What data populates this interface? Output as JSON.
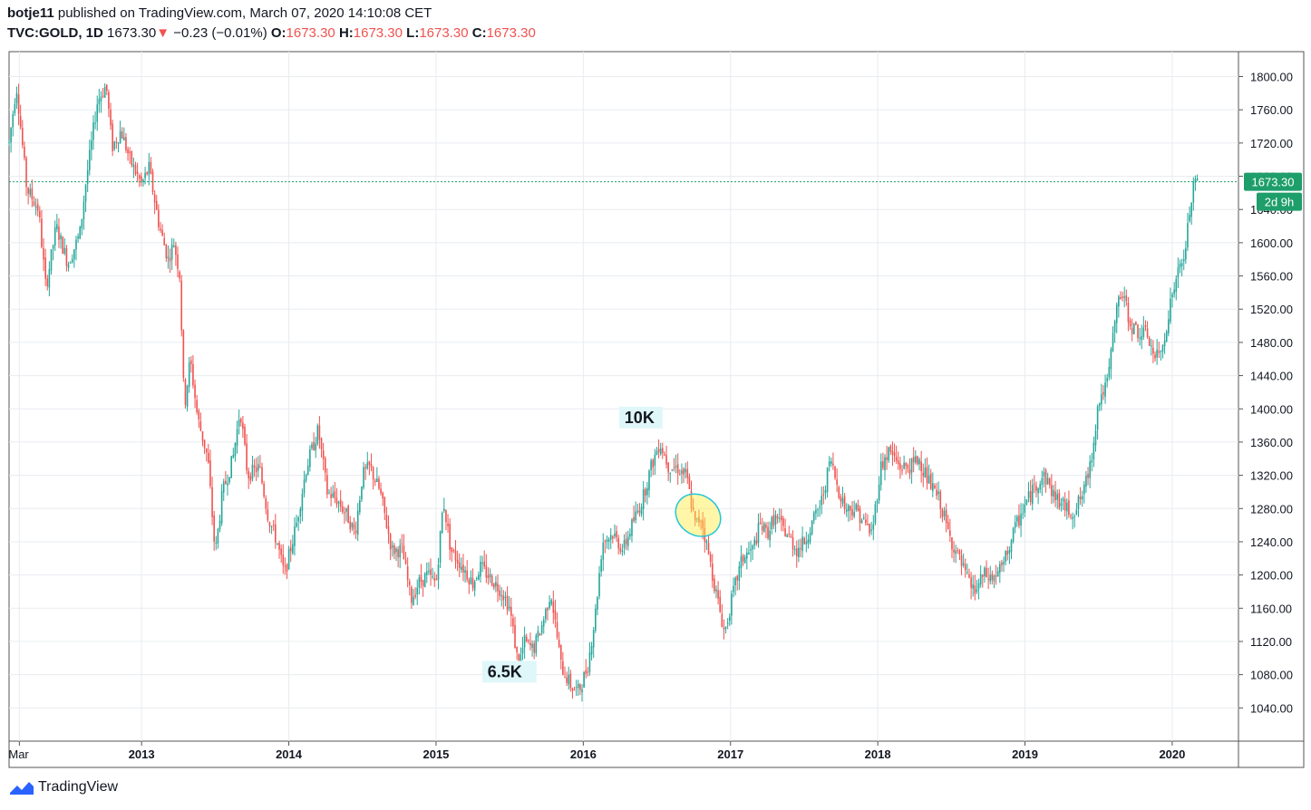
{
  "header": {
    "author": "botje11",
    "published": "published on TradingView.com, March 07, 2020 14:10:08 CET",
    "symbol": "TVC:GOLD, 1D",
    "last": "1673.30",
    "change": "−0.23 (−0.01%)",
    "o_label": "O:",
    "o_value": "1673.30",
    "h_label": "H:",
    "h_value": "1673.30",
    "l_label": "L:",
    "l_value": "1673.30",
    "c_label": "C:",
    "c_value": "1673.30"
  },
  "footer": {
    "brand": "TradingView"
  },
  "colors": {
    "up": "#26a69a",
    "down": "#ef5350",
    "price_tag": "#1e9e6a",
    "grid": "#e8ecf0",
    "axis": "#555555",
    "text": "#131722"
  },
  "chart_data": {
    "type": "candlestick",
    "symbol": "TVC:GOLD",
    "interval": "1D",
    "ylim": [
      1000,
      1830
    ],
    "y_ticks": [
      1040,
      1080,
      1120,
      1160,
      1200,
      1240,
      1280,
      1320,
      1360,
      1400,
      1440,
      1480,
      1520,
      1560,
      1600,
      1640,
      1680,
      1720,
      1760,
      1800
    ],
    "x_ticks": [
      {
        "label": "Mar",
        "t": 2012.17
      },
      {
        "label": "2013",
        "t": 2013.0
      },
      {
        "label": "2014",
        "t": 2014.0
      },
      {
        "label": "2015",
        "t": 2015.0
      },
      {
        "label": "2016",
        "t": 2016.0
      },
      {
        "label": "2017",
        "t": 2017.0
      },
      {
        "label": "2018",
        "t": 2018.0
      },
      {
        "label": "2019",
        "t": 2019.0
      },
      {
        "label": "2020",
        "t": 2020.0
      }
    ],
    "x_range": [
      2012.1,
      2020.45
    ],
    "current_price": 1673.3,
    "current_price_label": "1673.30",
    "countdown_label": "2d 9h",
    "price_path": [
      [
        2012.1,
        1720
      ],
      [
        2012.15,
        1790
      ],
      [
        2012.22,
        1665
      ],
      [
        2012.3,
        1640
      ],
      [
        2012.35,
        1545
      ],
      [
        2012.42,
        1620
      ],
      [
        2012.5,
        1575
      ],
      [
        2012.58,
        1610
      ],
      [
        2012.62,
        1670
      ],
      [
        2012.7,
        1770
      ],
      [
        2012.76,
        1790
      ],
      [
        2012.8,
        1715
      ],
      [
        2012.86,
        1735
      ],
      [
        2012.92,
        1700
      ],
      [
        2013.0,
        1670
      ],
      [
        2013.05,
        1690
      ],
      [
        2013.12,
        1620
      ],
      [
        2013.18,
        1580
      ],
      [
        2013.22,
        1600
      ],
      [
        2013.26,
        1560
      ],
      [
        2013.29,
        1400
      ],
      [
        2013.33,
        1460
      ],
      [
        2013.38,
        1390
      ],
      [
        2013.45,
        1340
      ],
      [
        2013.5,
        1225
      ],
      [
        2013.55,
        1300
      ],
      [
        2013.62,
        1340
      ],
      [
        2013.67,
        1400
      ],
      [
        2013.72,
        1320
      ],
      [
        2013.8,
        1330
      ],
      [
        2013.86,
        1270
      ],
      [
        2013.92,
        1240
      ],
      [
        2013.97,
        1200
      ],
      [
        2014.05,
        1260
      ],
      [
        2014.12,
        1330
      ],
      [
        2014.2,
        1375
      ],
      [
        2014.26,
        1300
      ],
      [
        2014.33,
        1290
      ],
      [
        2014.4,
        1270
      ],
      [
        2014.45,
        1250
      ],
      [
        2014.5,
        1320
      ],
      [
        2014.55,
        1330
      ],
      [
        2014.62,
        1300
      ],
      [
        2014.7,
        1230
      ],
      [
        2014.77,
        1230
      ],
      [
        2014.83,
        1170
      ],
      [
        2014.88,
        1190
      ],
      [
        2014.94,
        1200
      ],
      [
        2015.0,
        1190
      ],
      [
        2015.05,
        1290
      ],
      [
        2015.1,
        1230
      ],
      [
        2015.18,
        1210
      ],
      [
        2015.25,
        1190
      ],
      [
        2015.3,
        1210
      ],
      [
        2015.35,
        1200
      ],
      [
        2015.4,
        1190
      ],
      [
        2015.45,
        1180
      ],
      [
        2015.5,
        1160
      ],
      [
        2015.56,
        1090
      ],
      [
        2015.6,
        1120
      ],
      [
        2015.66,
        1110
      ],
      [
        2015.72,
        1140
      ],
      [
        2015.78,
        1180
      ],
      [
        2015.85,
        1090
      ],
      [
        2015.92,
        1065
      ],
      [
        2015.97,
        1060
      ],
      [
        2016.03,
        1090
      ],
      [
        2016.08,
        1150
      ],
      [
        2016.13,
        1240
      ],
      [
        2016.2,
        1250
      ],
      [
        2016.27,
        1230
      ],
      [
        2016.33,
        1260
      ],
      [
        2016.4,
        1290
      ],
      [
        2016.46,
        1330
      ],
      [
        2016.52,
        1360
      ],
      [
        2016.58,
        1330
      ],
      [
        2016.63,
        1330
      ],
      [
        2016.7,
        1320
      ],
      [
        2016.76,
        1260
      ],
      [
        2016.8,
        1270
      ],
      [
        2016.85,
        1225
      ],
      [
        2016.9,
        1180
      ],
      [
        2016.96,
        1130
      ],
      [
        2017.02,
        1180
      ],
      [
        2017.08,
        1220
      ],
      [
        2017.15,
        1230
      ],
      [
        2017.2,
        1260
      ],
      [
        2017.25,
        1250
      ],
      [
        2017.3,
        1270
      ],
      [
        2017.38,
        1250
      ],
      [
        2017.45,
        1230
      ],
      [
        2017.5,
        1240
      ],
      [
        2017.55,
        1260
      ],
      [
        2017.62,
        1290
      ],
      [
        2017.68,
        1340
      ],
      [
        2017.72,
        1310
      ],
      [
        2017.78,
        1280
      ],
      [
        2017.85,
        1280
      ],
      [
        2017.92,
        1260
      ],
      [
        2017.96,
        1250
      ],
      [
        2018.02,
        1330
      ],
      [
        2018.08,
        1350
      ],
      [
        2018.15,
        1330
      ],
      [
        2018.22,
        1330
      ],
      [
        2018.28,
        1340
      ],
      [
        2018.35,
        1310
      ],
      [
        2018.42,
        1290
      ],
      [
        2018.48,
        1250
      ],
      [
        2018.55,
        1220
      ],
      [
        2018.62,
        1190
      ],
      [
        2018.66,
        1180
      ],
      [
        2018.72,
        1200
      ],
      [
        2018.78,
        1195
      ],
      [
        2018.85,
        1210
      ],
      [
        2018.92,
        1250
      ],
      [
        2019.0,
        1285
      ],
      [
        2019.08,
        1310
      ],
      [
        2019.13,
        1320
      ],
      [
        2019.2,
        1295
      ],
      [
        2019.28,
        1280
      ],
      [
        2019.33,
        1275
      ],
      [
        2019.4,
        1300
      ],
      [
        2019.45,
        1340
      ],
      [
        2019.5,
        1410
      ],
      [
        2019.56,
        1430
      ],
      [
        2019.62,
        1520
      ],
      [
        2019.66,
        1540
      ],
      [
        2019.72,
        1500
      ],
      [
        2019.78,
        1490
      ],
      [
        2019.83,
        1490
      ],
      [
        2019.88,
        1460
      ],
      [
        2019.93,
        1470
      ],
      [
        2019.98,
        1520
      ],
      [
        2020.03,
        1560
      ],
      [
        2020.08,
        1580
      ],
      [
        2020.12,
        1640
      ],
      [
        2020.15,
        1670
      ],
      [
        2020.17,
        1673.3
      ]
    ],
    "annotations": [
      {
        "text": "10K",
        "t": 2016.28,
        "price": 1383
      },
      {
        "text": "6.5K",
        "t": 2015.35,
        "price": 1077
      }
    ],
    "highlight": {
      "t": 2016.78,
      "price": 1272,
      "type": "ellipse"
    }
  }
}
